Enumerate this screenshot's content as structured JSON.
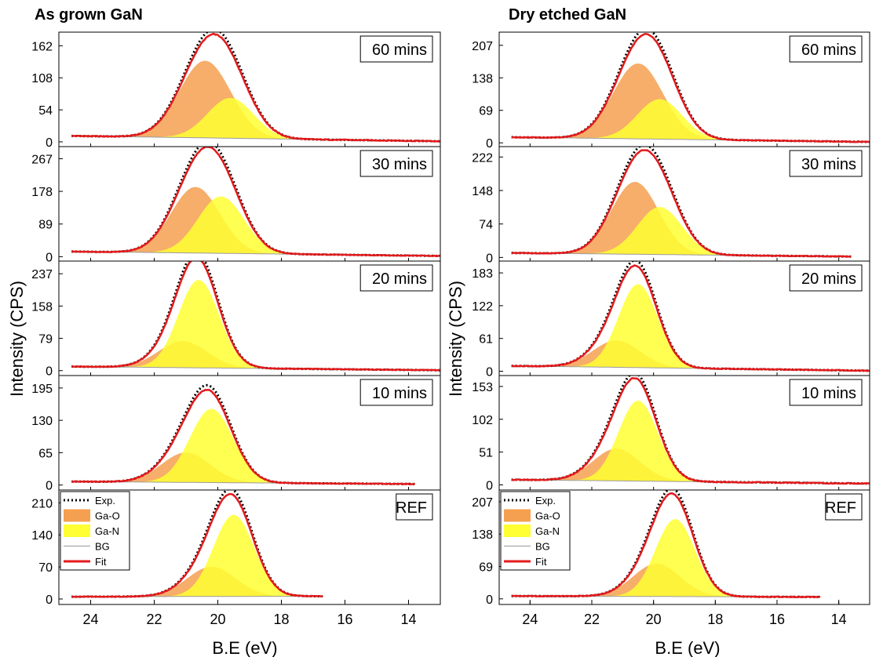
{
  "figure": {
    "ylabel": "Intensity (CPS)",
    "xlabel": "B.E (eV)"
  },
  "legend": {
    "items": [
      {
        "label": "Exp.",
        "kind": "dotted",
        "color": "#000000"
      },
      {
        "label": "Ga-O",
        "kind": "fill",
        "color": "#f5a050"
      },
      {
        "label": "Ga-N",
        "kind": "fill",
        "color": "#ffff33"
      },
      {
        "label": "BG",
        "kind": "line",
        "color": "#9a9a9a"
      },
      {
        "label": "Fit",
        "kind": "line",
        "color": "#e41a1c"
      }
    ]
  },
  "colors": {
    "ga_o": "#f5a050",
    "ga_n": "#ffff33",
    "fit": "#e41a1c",
    "exp": "#000000",
    "bg": "#9a9a9a"
  },
  "chart_data": [
    {
      "type": "line",
      "title": "As grown GaN",
      "xlabel": "B.E (eV)",
      "ylabel": "Intensity (CPS)",
      "xlim": [
        25,
        13
      ],
      "xticks": [
        24,
        22,
        20,
        18,
        16,
        14
      ],
      "panels": [
        {
          "label": "60 mins",
          "ylim": [
            -8,
            185
          ],
          "yticks": [
            0,
            54,
            108,
            162
          ],
          "x_end": 13.0,
          "gao": {
            "center": 20.4,
            "amp": 130,
            "fwhm": 1.9
          },
          "gan": {
            "center": 19.6,
            "amp": 68,
            "fwhm": 1.7
          },
          "bg": {
            "left": 10,
            "right": 1
          }
        },
        {
          "label": "30 mins",
          "ylim": [
            -12,
            300
          ],
          "yticks": [
            0,
            89,
            178,
            267
          ],
          "x_end": 13.0,
          "gao": {
            "center": 20.7,
            "amp": 180,
            "fwhm": 1.8
          },
          "gan": {
            "center": 19.9,
            "amp": 155,
            "fwhm": 1.7
          },
          "bg": {
            "left": 14,
            "right": 2
          }
        },
        {
          "label": "20 mins",
          "ylim": [
            -12,
            268
          ],
          "yticks": [
            0,
            79,
            158,
            237
          ],
          "x_end": 13.0,
          "gao": {
            "center": 21.1,
            "amp": 65,
            "fwhm": 1.8
          },
          "gan": {
            "center": 20.6,
            "amp": 215,
            "fwhm": 1.5
          },
          "bg": {
            "left": 10,
            "right": 1
          }
        },
        {
          "label": "10 mins",
          "ylim": [
            -10,
            220
          ],
          "yticks": [
            0,
            65,
            130,
            195
          ],
          "x_end": 13.8,
          "gao": {
            "center": 21.0,
            "amp": 60,
            "fwhm": 1.8
          },
          "gan": {
            "center": 20.2,
            "amp": 148,
            "fwhm": 1.6
          },
          "bg": {
            "left": 7,
            "right": 2
          }
        },
        {
          "label": "REF",
          "ylim": [
            -12,
            238
          ],
          "yticks": [
            0,
            70,
            140,
            210
          ],
          "x_end": 16.7,
          "gao": {
            "center": 20.2,
            "amp": 65,
            "fwhm": 1.8
          },
          "gan": {
            "center": 19.5,
            "amp": 178,
            "fwhm": 1.5
          },
          "bg": {
            "left": 5,
            "right": 6
          }
        }
      ]
    },
    {
      "type": "line",
      "title": "Dry etched GaN",
      "xlabel": "B.E (eV)",
      "ylabel": "Intensity (CPS)",
      "xlim": [
        25,
        13
      ],
      "xticks": [
        24,
        22,
        20,
        18,
        16,
        14
      ],
      "panels": [
        {
          "label": "60 mins",
          "ylim": [
            -8,
            235
          ],
          "yticks": [
            0,
            69,
            138,
            207
          ],
          "x_end": 13.0,
          "gao": {
            "center": 20.5,
            "amp": 160,
            "fwhm": 1.9
          },
          "gan": {
            "center": 19.8,
            "amp": 85,
            "fwhm": 1.7
          },
          "bg": {
            "left": 12,
            "right": 2
          }
        },
        {
          "label": "30 mins",
          "ylim": [
            -8,
            245
          ],
          "yticks": [
            0,
            74,
            148,
            222
          ],
          "x_end": 13.6,
          "gao": {
            "center": 20.6,
            "amp": 160,
            "fwhm": 1.8
          },
          "gan": {
            "center": 19.8,
            "amp": 105,
            "fwhm": 1.7
          },
          "bg": {
            "left": 10,
            "right": 2
          }
        },
        {
          "label": "20 mins",
          "ylim": [
            -8,
            205
          ],
          "yticks": [
            0,
            61,
            122,
            183
          ],
          "x_end": 13.0,
          "gao": {
            "center": 21.2,
            "amp": 50,
            "fwhm": 1.8
          },
          "gan": {
            "center": 20.5,
            "amp": 155,
            "fwhm": 1.5
          },
          "bg": {
            "left": 10,
            "right": 1
          }
        },
        {
          "label": "10 mins",
          "ylim": [
            -8,
            170
          ],
          "yticks": [
            0,
            51,
            102,
            153
          ],
          "x_end": 13.0,
          "gao": {
            "center": 21.2,
            "amp": 50,
            "fwhm": 1.8
          },
          "gan": {
            "center": 20.5,
            "amp": 125,
            "fwhm": 1.5
          },
          "bg": {
            "left": 8,
            "right": 2
          }
        },
        {
          "label": "REF",
          "ylim": [
            -12,
            232
          ],
          "yticks": [
            0,
            69,
            138,
            207
          ],
          "x_end": 14.6,
          "gao": {
            "center": 19.9,
            "amp": 70,
            "fwhm": 1.8
          },
          "gan": {
            "center": 19.3,
            "amp": 165,
            "fwhm": 1.5
          },
          "bg": {
            "left": 6,
            "right": 4
          }
        }
      ]
    }
  ]
}
